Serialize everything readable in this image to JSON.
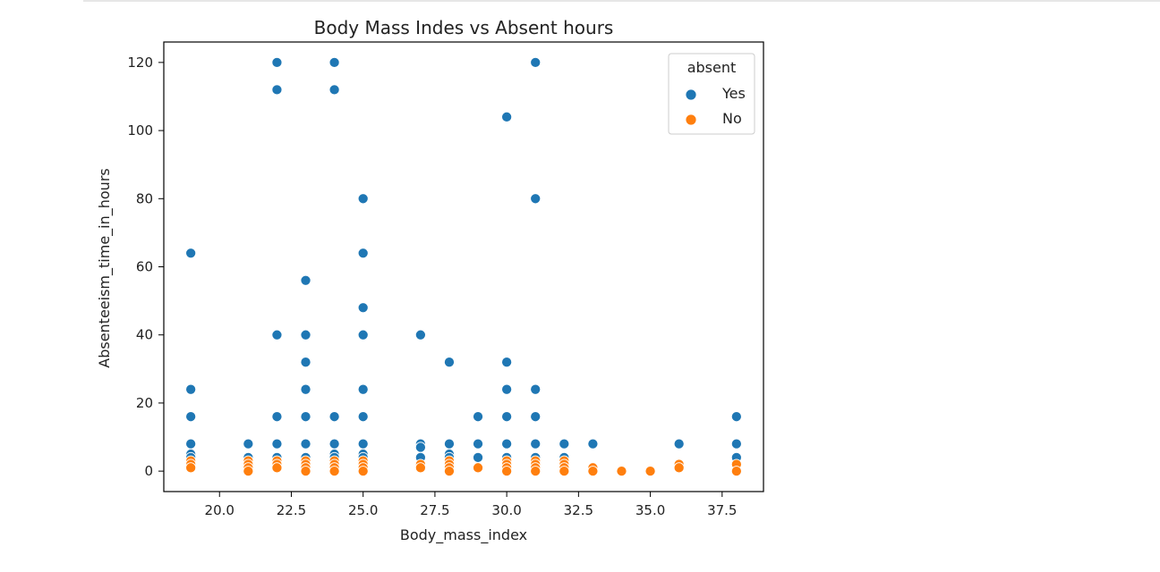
{
  "chart_data": {
    "type": "scatter",
    "title": "Body Mass Indes vs Absent hours",
    "xlabel": "Body_mass_index",
    "ylabel": "Absenteeism_time_in_hours",
    "xlim": [
      18.06,
      38.94
    ],
    "ylim": [
      -6.0,
      126.0
    ],
    "xticks": [
      20.0,
      22.5,
      25.0,
      27.5,
      30.0,
      32.5,
      35.0,
      37.5
    ],
    "xtick_labels": [
      "20.0",
      "22.5",
      "25.0",
      "27.5",
      "30.0",
      "32.5",
      "35.0",
      "37.5"
    ],
    "yticks": [
      0,
      20,
      40,
      60,
      80,
      100,
      120
    ],
    "ytick_labels": [
      "0",
      "20",
      "40",
      "60",
      "80",
      "100",
      "120"
    ],
    "grid": false,
    "legend": {
      "title": "absent",
      "placement": "top-right",
      "entries": [
        {
          "label": "Yes",
          "color": "#1f77b4"
        },
        {
          "label": "No",
          "color": "#ff7f0e"
        }
      ]
    },
    "series": [
      {
        "name": "Yes",
        "color": "#1f77b4",
        "points": [
          [
            19,
            64
          ],
          [
            19,
            24
          ],
          [
            19,
            16
          ],
          [
            19,
            8
          ],
          [
            19,
            5
          ],
          [
            19,
            4
          ],
          [
            21,
            8
          ],
          [
            21,
            4
          ],
          [
            22,
            120
          ],
          [
            22,
            112
          ],
          [
            22,
            40
          ],
          [
            22,
            16
          ],
          [
            22,
            8
          ],
          [
            22,
            4
          ],
          [
            23,
            56
          ],
          [
            23,
            40
          ],
          [
            23,
            32
          ],
          [
            23,
            24
          ],
          [
            23,
            16
          ],
          [
            23,
            8
          ],
          [
            23,
            4
          ],
          [
            24,
            120
          ],
          [
            24,
            112
          ],
          [
            24,
            16
          ],
          [
            24,
            8
          ],
          [
            24,
            5
          ],
          [
            24,
            4
          ],
          [
            25,
            80
          ],
          [
            25,
            64
          ],
          [
            25,
            48
          ],
          [
            25,
            40
          ],
          [
            25,
            24
          ],
          [
            25,
            16
          ],
          [
            25,
            8
          ],
          [
            25,
            5
          ],
          [
            25,
            4
          ],
          [
            27,
            40
          ],
          [
            27,
            8
          ],
          [
            27,
            7
          ],
          [
            27,
            4
          ],
          [
            28,
            32
          ],
          [
            28,
            8
          ],
          [
            28,
            5
          ],
          [
            28,
            4
          ],
          [
            29,
            16
          ],
          [
            29,
            8
          ],
          [
            29,
            4
          ],
          [
            30,
            104
          ],
          [
            30,
            32
          ],
          [
            30,
            24
          ],
          [
            30,
            16
          ],
          [
            30,
            8
          ],
          [
            30,
            4
          ],
          [
            31,
            120
          ],
          [
            31,
            80
          ],
          [
            31,
            24
          ],
          [
            31,
            16
          ],
          [
            31,
            8
          ],
          [
            31,
            4
          ],
          [
            32,
            8
          ],
          [
            32,
            4
          ],
          [
            33,
            8
          ],
          [
            36,
            8
          ],
          [
            38,
            16
          ],
          [
            38,
            8
          ],
          [
            38,
            4
          ]
        ]
      },
      {
        "name": "No",
        "color": "#ff7f0e",
        "points": [
          [
            19,
            3
          ],
          [
            19,
            2
          ],
          [
            19,
            1
          ],
          [
            21,
            3
          ],
          [
            21,
            2
          ],
          [
            21,
            1
          ],
          [
            21,
            0
          ],
          [
            22,
            3
          ],
          [
            22,
            2
          ],
          [
            22,
            1
          ],
          [
            23,
            3
          ],
          [
            23,
            2
          ],
          [
            23,
            1
          ],
          [
            23,
            0
          ],
          [
            24,
            3
          ],
          [
            24,
            2
          ],
          [
            24,
            1
          ],
          [
            24,
            0
          ],
          [
            25,
            3
          ],
          [
            25,
            2
          ],
          [
            25,
            1
          ],
          [
            25,
            0
          ],
          [
            27,
            2
          ],
          [
            27,
            1
          ],
          [
            28,
            3
          ],
          [
            28,
            2
          ],
          [
            28,
            1
          ],
          [
            28,
            0
          ],
          [
            29,
            1
          ],
          [
            30,
            3
          ],
          [
            30,
            2
          ],
          [
            30,
            1
          ],
          [
            30,
            0
          ],
          [
            31,
            3
          ],
          [
            31,
            2
          ],
          [
            31,
            1
          ],
          [
            31,
            0
          ],
          [
            32,
            3
          ],
          [
            32,
            2
          ],
          [
            32,
            1
          ],
          [
            32,
            0
          ],
          [
            33,
            1
          ],
          [
            33,
            0
          ],
          [
            34,
            0
          ],
          [
            35,
            0
          ],
          [
            36,
            2
          ],
          [
            36,
            1
          ],
          [
            38,
            2
          ],
          [
            38,
            0
          ]
        ]
      }
    ]
  }
}
